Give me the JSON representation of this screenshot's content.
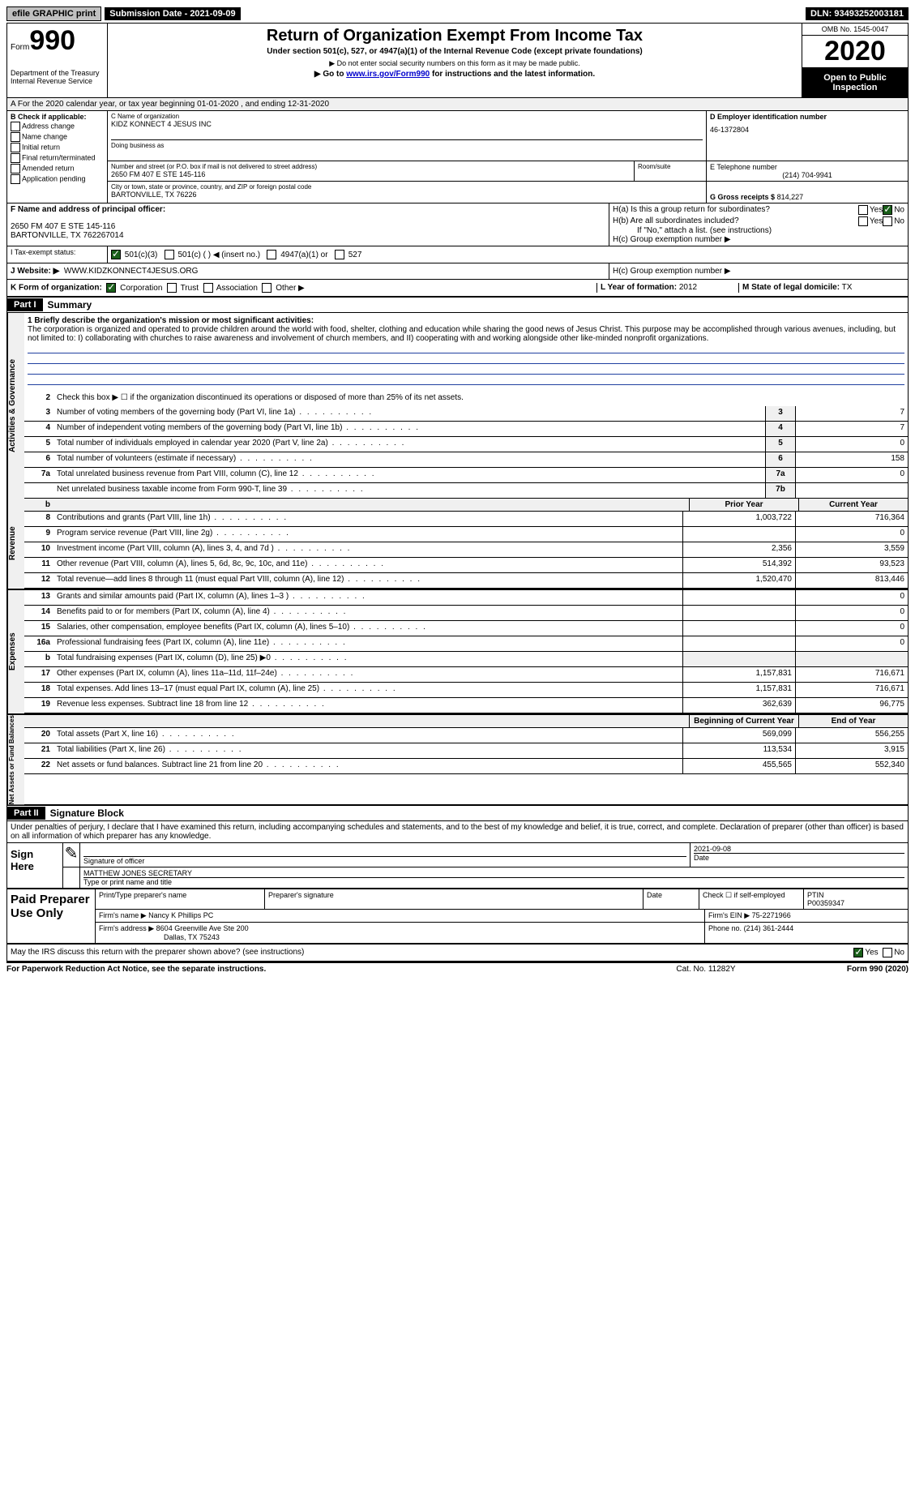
{
  "topbar": {
    "efile": "efile GRAPHIC print",
    "submission": "Submission Date - 2021-09-09",
    "dln": "DLN: 93493252003181"
  },
  "header": {
    "form_label": "Form",
    "form_num": "990",
    "dept": "Department of the Treasury\nInternal Revenue Service",
    "title": "Return of Organization Exempt From Income Tax",
    "sub": "Under section 501(c), 527, or 4947(a)(1) of the Internal Revenue Code (except private foundations)",
    "sub2": "▶ Do not enter social security numbers on this form as it may be made public.",
    "sub3_pre": "▶ Go to ",
    "sub3_link": "www.irs.gov/Form990",
    "sub3_post": " for instructions and the latest information.",
    "omb": "OMB No. 1545-0047",
    "year": "2020",
    "inspect": "Open to Public Inspection"
  },
  "row_a": "A For the 2020 calendar year, or tax year beginning 01-01-2020    , and ending 12-31-2020",
  "section_b": {
    "label": "B Check if applicable:",
    "items": [
      "Address change",
      "Name change",
      "Initial return",
      "Final return/terminated",
      "Amended return",
      "Application pending"
    ]
  },
  "section_c": {
    "name_lbl": "C Name of organization",
    "name": "KIDZ KONNECT 4 JESUS INC",
    "dba_lbl": "Doing business as",
    "addr_lbl": "Number and street (or P.O. box if mail is not delivered to street address)",
    "addr": "2650 FM 407 E STE 145-116",
    "room_lbl": "Room/suite",
    "city_lbl": "City or town, state or province, country, and ZIP or foreign postal code",
    "city": "BARTONVILLE, TX  76226"
  },
  "section_d": {
    "lbl": "D Employer identification number",
    "val": "46-1372804"
  },
  "section_e": {
    "lbl": "E Telephone number",
    "val": "(214) 704-9941"
  },
  "section_g": {
    "lbl": "G Gross receipts $",
    "val": "814,227"
  },
  "section_f": {
    "lbl": "F Name and address of principal officer:",
    "addr1": "2650 FM 407 E STE 145-116",
    "addr2": "BARTONVILLE, TX  762267014"
  },
  "section_h": {
    "ha": "H(a)  Is this a group return for subordinates?",
    "hb": "H(b)  Are all subordinates included?",
    "hb_note": "If \"No,\" attach a list. (see instructions)",
    "hc": "H(c)  Group exemption number ▶"
  },
  "tax_status": {
    "lbl": "I   Tax-exempt status:",
    "opts": [
      "501(c)(3)",
      "501(c) (  ) ◀ (insert no.)",
      "4947(a)(1) or",
      "527"
    ]
  },
  "section_j": {
    "lbl": "J   Website: ▶",
    "val": "WWW.KIDZKONNECT4JESUS.ORG"
  },
  "section_k": {
    "lbl": "K Form of organization:",
    "opts": [
      "Corporation",
      "Trust",
      "Association",
      "Other ▶"
    ]
  },
  "section_l": {
    "lbl": "L Year of formation:",
    "val": "2012"
  },
  "section_m": {
    "lbl": "M State of legal domicile:",
    "val": "TX"
  },
  "part1": {
    "hdr": "Part I",
    "title": "Summary",
    "tabs": [
      "Activities & Governance",
      "Revenue",
      "Expenses",
      "Net Assets or Fund Balances"
    ],
    "line1_lbl": "1  Briefly describe the organization's mission or most significant activities:",
    "mission": "The corporation is organized and operated to provide children around the world with food, shelter, clothing and education while sharing the good news of Jesus Christ. This purpose may be accomplished through various avenues, including, but not limited to: I) collaborating with churches to raise awareness and involvement of church members, and II) cooperating with and working alongside other like-minded nonprofit organizations.",
    "line2": "Check this box ▶ ☐ if the organization discontinued its operations or disposed of more than 25% of its net assets.",
    "lines_gov": [
      {
        "n": "3",
        "t": "Number of voting members of the governing body (Part VI, line 1a)",
        "b": "3",
        "v": "7"
      },
      {
        "n": "4",
        "t": "Number of independent voting members of the governing body (Part VI, line 1b)",
        "b": "4",
        "v": "7"
      },
      {
        "n": "5",
        "t": "Total number of individuals employed in calendar year 2020 (Part V, line 2a)",
        "b": "5",
        "v": "0"
      },
      {
        "n": "6",
        "t": "Total number of volunteers (estimate if necessary)",
        "b": "6",
        "v": "158"
      },
      {
        "n": "7a",
        "t": "Total unrelated business revenue from Part VIII, column (C), line 12",
        "b": "7a",
        "v": "0"
      },
      {
        "n": "",
        "t": "Net unrelated business taxable income from Form 990-T, line 39",
        "b": "7b",
        "v": ""
      }
    ],
    "col_hdrs": {
      "b": "b",
      "prior": "Prior Year",
      "current": "Current Year"
    },
    "lines_rev": [
      {
        "n": "8",
        "t": "Contributions and grants (Part VIII, line 1h)",
        "p": "1,003,722",
        "c": "716,364"
      },
      {
        "n": "9",
        "t": "Program service revenue (Part VIII, line 2g)",
        "p": "",
        "c": "0"
      },
      {
        "n": "10",
        "t": "Investment income (Part VIII, column (A), lines 3, 4, and 7d )",
        "p": "2,356",
        "c": "3,559"
      },
      {
        "n": "11",
        "t": "Other revenue (Part VIII, column (A), lines 5, 6d, 8c, 9c, 10c, and 11e)",
        "p": "514,392",
        "c": "93,523"
      },
      {
        "n": "12",
        "t": "Total revenue—add lines 8 through 11 (must equal Part VIII, column (A), line 12)",
        "p": "1,520,470",
        "c": "813,446"
      }
    ],
    "lines_exp": [
      {
        "n": "13",
        "t": "Grants and similar amounts paid (Part IX, column (A), lines 1–3 )",
        "p": "",
        "c": "0"
      },
      {
        "n": "14",
        "t": "Benefits paid to or for members (Part IX, column (A), line 4)",
        "p": "",
        "c": "0"
      },
      {
        "n": "15",
        "t": "Salaries, other compensation, employee benefits (Part IX, column (A), lines 5–10)",
        "p": "",
        "c": "0"
      },
      {
        "n": "16a",
        "t": "Professional fundraising fees (Part IX, column (A), line 11e)",
        "p": "",
        "c": "0"
      },
      {
        "n": "b",
        "t": "Total fundraising expenses (Part IX, column (D), line 25) ▶0",
        "p": "__grey__",
        "c": "__grey__"
      },
      {
        "n": "17",
        "t": "Other expenses (Part IX, column (A), lines 11a–11d, 11f–24e)",
        "p": "1,157,831",
        "c": "716,671"
      },
      {
        "n": "18",
        "t": "Total expenses. Add lines 13–17 (must equal Part IX, column (A), line 25)",
        "p": "1,157,831",
        "c": "716,671"
      },
      {
        "n": "19",
        "t": "Revenue less expenses. Subtract line 18 from line 12",
        "p": "362,639",
        "c": "96,775"
      }
    ],
    "col_hdrs2": {
      "begin": "Beginning of Current Year",
      "end": "End of Year"
    },
    "lines_net": [
      {
        "n": "20",
        "t": "Total assets (Part X, line 16)",
        "p": "569,099",
        "c": "556,255"
      },
      {
        "n": "21",
        "t": "Total liabilities (Part X, line 26)",
        "p": "113,534",
        "c": "3,915"
      },
      {
        "n": "22",
        "t": "Net assets or fund balances. Subtract line 21 from line 20",
        "p": "455,565",
        "c": "552,340"
      }
    ]
  },
  "part2": {
    "hdr": "Part II",
    "title": "Signature Block",
    "decl": "Under penalties of perjury, I declare that I have examined this return, including accompanying schedules and statements, and to the best of my knowledge and belief, it is true, correct, and complete. Declaration of preparer (other than officer) is based on all information of which preparer has any knowledge.",
    "sign_here": "Sign Here",
    "sig_lbl": "Signature of officer",
    "date_lbl": "Date",
    "date_val": "2021-09-08",
    "name_val": "MATTHEW JONES  SECRETARY",
    "name_lbl": "Type or print name and title",
    "paid": "Paid Preparer Use Only",
    "prep_name_lbl": "Print/Type preparer's name",
    "prep_sig_lbl": "Preparer's signature",
    "check_lbl": "Check ☐ if self-employed",
    "ptin_lbl": "PTIN",
    "ptin_val": "P00359347",
    "firm_name_lbl": "Firm's name    ▶",
    "firm_name": "Nancy K Phillips PC",
    "firm_ein_lbl": "Firm's EIN ▶",
    "firm_ein": "75-2271966",
    "firm_addr_lbl": "Firm's address ▶",
    "firm_addr1": "8604 Greenville Ave Ste 200",
    "firm_addr2": "Dallas, TX  75243",
    "phone_lbl": "Phone no.",
    "phone": "(214) 361-2444",
    "discuss": "May the IRS discuss this return with the preparer shown above? (see instructions)"
  },
  "footer": {
    "left": "For Paperwork Reduction Act Notice, see the separate instructions.",
    "mid": "Cat. No. 11282Y",
    "right": "Form 990 (2020)"
  }
}
